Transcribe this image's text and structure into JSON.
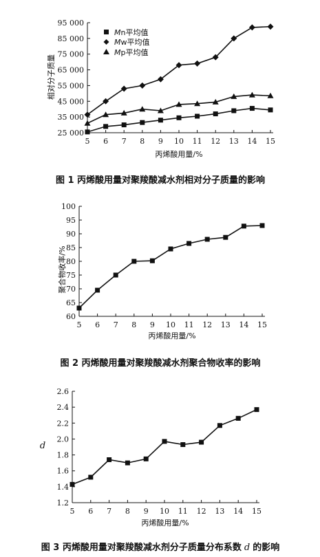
{
  "chart_data": [
    {
      "type": "line",
      "xlabel": "丙烯酸用量/%",
      "ylabel": "相对分子质量",
      "x": [
        5,
        6,
        7,
        8,
        9,
        10,
        11,
        12,
        13,
        14,
        15
      ],
      "ylim": [
        25000,
        95000
      ],
      "yticks": [
        "25 000",
        "35 000",
        "45 000",
        "55 000",
        "65 000",
        "75 000",
        "85 000",
        "95 000"
      ],
      "legend_position": "top-left",
      "series": [
        {
          "name": "Mn平均值",
          "legend_italic": "M",
          "legend_rest": "n平均值",
          "marker": "square",
          "values": [
            25500,
            29000,
            30000,
            31500,
            33000,
            34500,
            35500,
            37000,
            39000,
            40500,
            39500
          ]
        },
        {
          "name": "Mw平均值",
          "legend_italic": "M",
          "legend_rest": "w平均值",
          "marker": "diamond",
          "values": [
            36500,
            45000,
            53000,
            55000,
            59000,
            68000,
            69000,
            73000,
            85000,
            92000,
            92500
          ]
        },
        {
          "name": "Mp平均值",
          "legend_italic": "M",
          "legend_rest": "p平均值",
          "marker": "triangle",
          "values": [
            31000,
            36500,
            37500,
            40000,
            39000,
            43000,
            43500,
            44500,
            48000,
            49000,
            48500
          ]
        }
      ],
      "caption": "图 1   丙烯酸用量对聚羧酸减水剂相对分子质量的影响"
    },
    {
      "type": "line",
      "xlabel": "丙烯酸用量/%",
      "ylabel": "聚合物收率/%",
      "x": [
        5,
        6,
        7,
        8,
        9,
        10,
        11,
        12,
        13,
        14,
        15
      ],
      "ylim": [
        60,
        100
      ],
      "yticks": [
        "60",
        "65",
        "70",
        "75",
        "80",
        "85",
        "90",
        "95",
        "100"
      ],
      "series": [
        {
          "marker": "square",
          "values": [
            63,
            69.5,
            75,
            80,
            80.2,
            84.5,
            86.5,
            88,
            88.7,
            92.8,
            93
          ]
        }
      ],
      "caption": "图 2   丙烯酸用量对聚羧酸减水剂聚合物收率的影响"
    },
    {
      "type": "line",
      "xlabel": "丙烯酸用量/%",
      "ylabel": "d",
      "x": [
        5,
        6,
        7,
        8,
        9,
        10,
        11,
        12,
        13,
        14,
        15
      ],
      "ylim": [
        1.2,
        2.6
      ],
      "yticks": [
        "1.2",
        "1.4",
        "1.6",
        "1.8",
        "2.0",
        "2.2",
        "2.4",
        "2.6"
      ],
      "series": [
        {
          "marker": "square",
          "values": [
            1.43,
            1.52,
            1.74,
            1.7,
            1.75,
            1.97,
            1.93,
            1.96,
            2.17,
            2.26,
            2.37
          ]
        }
      ],
      "caption_before": "图 3   丙烯酸用量对聚羧酸减水剂分子质量分布系数",
      "caption_var": "d",
      "caption_after": "的影响"
    }
  ]
}
